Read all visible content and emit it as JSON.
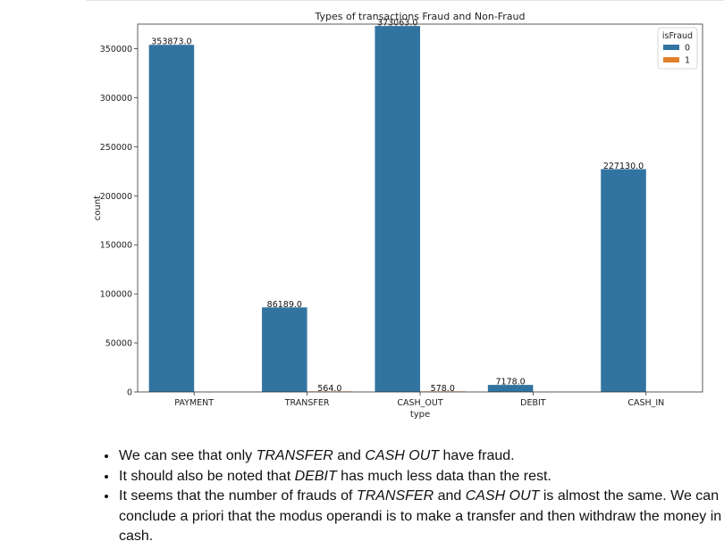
{
  "chart_data": {
    "type": "bar",
    "title": "Types of transactions Fraud and Non-Fraud",
    "xlabel": "type",
    "ylabel": "count",
    "categories": [
      "PAYMENT",
      "TRANSFER",
      "CASH_OUT",
      "DEBIT",
      "CASH_IN"
    ],
    "ylim": [
      0,
      375000
    ],
    "yticks": [
      0,
      50000,
      100000,
      150000,
      200000,
      250000,
      300000,
      350000
    ],
    "legend": {
      "title": "isFraud",
      "position": "top-right"
    },
    "series": [
      {
        "name": "0",
        "color": "#3274a1",
        "values": [
          353873,
          86189,
          373063,
          7178,
          227130
        ]
      },
      {
        "name": "1",
        "color": "#e1812c",
        "values": [
          0,
          564,
          578,
          0,
          0
        ]
      }
    ],
    "data_labels": [
      [
        "353873.0",
        "86189.0",
        "373063.0",
        "7178.0",
        "227130.0"
      ],
      [
        "",
        "564.0",
        "578.0",
        "",
        ""
      ]
    ],
    "grid": false
  },
  "notes": [
    {
      "parts": [
        {
          "t": "We can see that only "
        },
        {
          "t": "TRANSFER",
          "i": true
        },
        {
          "t": " and "
        },
        {
          "t": "CASH OUT",
          "i": true
        },
        {
          "t": " have fraud."
        }
      ]
    },
    {
      "parts": [
        {
          "t": "It should also be noted that "
        },
        {
          "t": "DEBIT",
          "i": true
        },
        {
          "t": " has much less data than the rest."
        }
      ]
    },
    {
      "parts": [
        {
          "t": "It seems that the number of frauds of "
        },
        {
          "t": "TRANSFER",
          "i": true
        },
        {
          "t": " and "
        },
        {
          "t": "CASH OUT",
          "i": true
        },
        {
          "t": " is almost the same. We can conclude a priori that the modus operandi is to make a transfer and then withdraw the money in cash."
        }
      ]
    }
  ]
}
